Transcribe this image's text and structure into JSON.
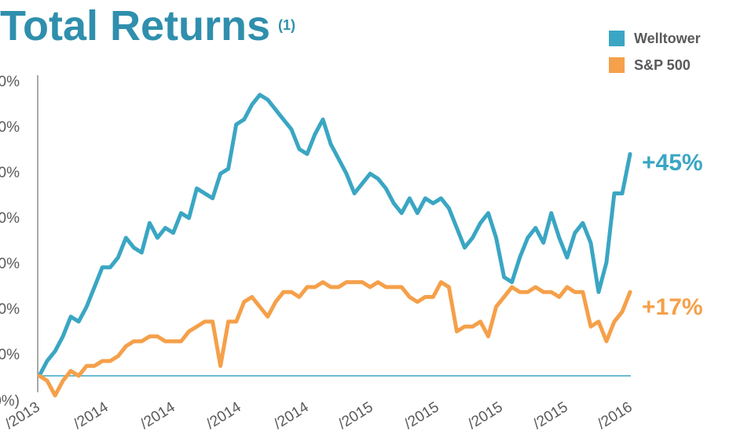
{
  "title": "Total Returns",
  "title_footnote": "(1)",
  "colors": {
    "welltower": "#3aa6c3",
    "sp500": "#f5a04a",
    "title": "#2f8fad",
    "axis": "#8c8c8c",
    "tick_text": "#595959"
  },
  "legend": {
    "position": "top-right",
    "items": [
      {
        "label": "Welltower",
        "color": "#3aa6c3"
      },
      {
        "label": "S&P 500",
        "color": "#f5a04a"
      }
    ]
  },
  "chart_data": {
    "type": "line",
    "title": "Total Returns",
    "y_ticks": [
      "0%",
      "0%",
      "0%",
      "0%",
      "0%",
      "0%",
      "0%",
      "0%)"
    ],
    "x_ticks": [
      "/2013",
      "/2014",
      "/2014",
      "/2014",
      "/2014",
      "/2015",
      "/2015",
      "/2015",
      "/2015",
      "/2016"
    ],
    "ylim": [
      -5,
      60
    ],
    "x": [
      0,
      10,
      20,
      30,
      40,
      50,
      60,
      70,
      80,
      90,
      100,
      110,
      120,
      130,
      140,
      150,
      160,
      170,
      180,
      190,
      200,
      210,
      220,
      230,
      240,
      250,
      260,
      270,
      280,
      290,
      300,
      310,
      320,
      330,
      340,
      350,
      360,
      370,
      380,
      390,
      400,
      410,
      420,
      430,
      440,
      450,
      460,
      470,
      480,
      490,
      500,
      510,
      520,
      530,
      540,
      550,
      560,
      570,
      580,
      590,
      600,
      610,
      620,
      630,
      640,
      650,
      660,
      670,
      680,
      690,
      700,
      710,
      720,
      730,
      740,
      750
    ],
    "grid": false,
    "end_labels": {
      "welltower": "+45%",
      "sp500": "+17%"
    },
    "series": [
      {
        "name": "Welltower",
        "color": "#3aa6c3",
        "values": [
          0,
          3,
          5,
          8,
          12,
          11,
          14,
          18,
          22,
          22,
          24,
          28,
          26,
          25,
          31,
          28,
          30,
          29,
          33,
          32,
          38,
          37,
          36,
          41,
          42,
          51,
          52,
          55,
          57,
          56,
          54,
          52,
          50,
          46,
          45,
          49,
          52,
          47,
          44,
          41,
          37,
          39,
          41,
          40,
          38,
          35,
          33,
          36,
          33,
          36,
          35,
          36,
          34,
          30,
          26,
          28,
          31,
          33,
          28,
          20,
          19,
          24,
          28,
          30,
          27,
          33,
          28,
          24,
          29,
          31,
          27,
          17,
          23,
          37,
          37,
          45
        ]
      },
      {
        "name": "S&P 500",
        "color": "#f5a04a",
        "values": [
          0,
          -1,
          -4,
          -1,
          1,
          0,
          2,
          2,
          3,
          3,
          4,
          6,
          7,
          7,
          8,
          8,
          7,
          7,
          7,
          9,
          10,
          11,
          11,
          2,
          11,
          11,
          15,
          16,
          14,
          12,
          15,
          17,
          17,
          16,
          18,
          18,
          19,
          18,
          18,
          19,
          19,
          19,
          18,
          19,
          18,
          18,
          18,
          16,
          15,
          16,
          16,
          19,
          18,
          9,
          10,
          10,
          11,
          8,
          14,
          16,
          18,
          17,
          17,
          18,
          17,
          17,
          16,
          18,
          17,
          17,
          10,
          11,
          7,
          11,
          13,
          17
        ]
      }
    ]
  }
}
